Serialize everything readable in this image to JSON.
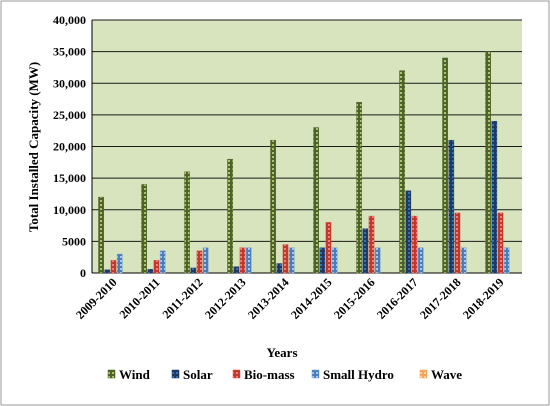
{
  "chart_data": {
    "type": "bar",
    "xlabel": "Years",
    "ylabel": "Total Installed Capacity (MW)",
    "ylim": [
      0,
      40000
    ],
    "y_ticks": [
      "0",
      "5000",
      "10,000",
      "15,000",
      "20,000",
      "25,000",
      "30,000",
      "35,000",
      "40,000"
    ],
    "grid": true,
    "legend_position": "bottom",
    "categories": [
      "2009-2010",
      "2010-2011",
      "2011-2012",
      "2012-2013",
      "2013-2014",
      "2014-2015",
      "2015-2016",
      "2016-2017",
      "2017-2018",
      "2018-2019"
    ],
    "series": [
      {
        "name": "Wind",
        "color": "#4f6228",
        "values": [
          12000,
          14000,
          16000,
          18000,
          21000,
          23000,
          27000,
          32000,
          34000,
          35000
        ]
      },
      {
        "name": "Solar",
        "color": "#1f3864",
        "values": [
          500,
          600,
          800,
          1000,
          1500,
          4000,
          7000,
          13000,
          21000,
          24000
        ]
      },
      {
        "name": "Bio-mass",
        "color": "#d94b4b",
        "values": [
          2000,
          2000,
          3500,
          4000,
          4500,
          8000,
          9000,
          9000,
          9500,
          9500
        ]
      },
      {
        "name": "Small Hydro",
        "color": "#6f9bd1",
        "values": [
          3000,
          3500,
          4000,
          4000,
          4000,
          4000,
          4000,
          4000,
          4000,
          4000
        ]
      },
      {
        "name": "Wave",
        "color": "#f4a460",
        "values": [
          0,
          0,
          0,
          0,
          0,
          0,
          0,
          0,
          0,
          0
        ]
      }
    ],
    "colors": {
      "plot_background": "#d7e4bd",
      "gridline": "#1a1a1a",
      "frame": "#9a9a9a"
    }
  }
}
